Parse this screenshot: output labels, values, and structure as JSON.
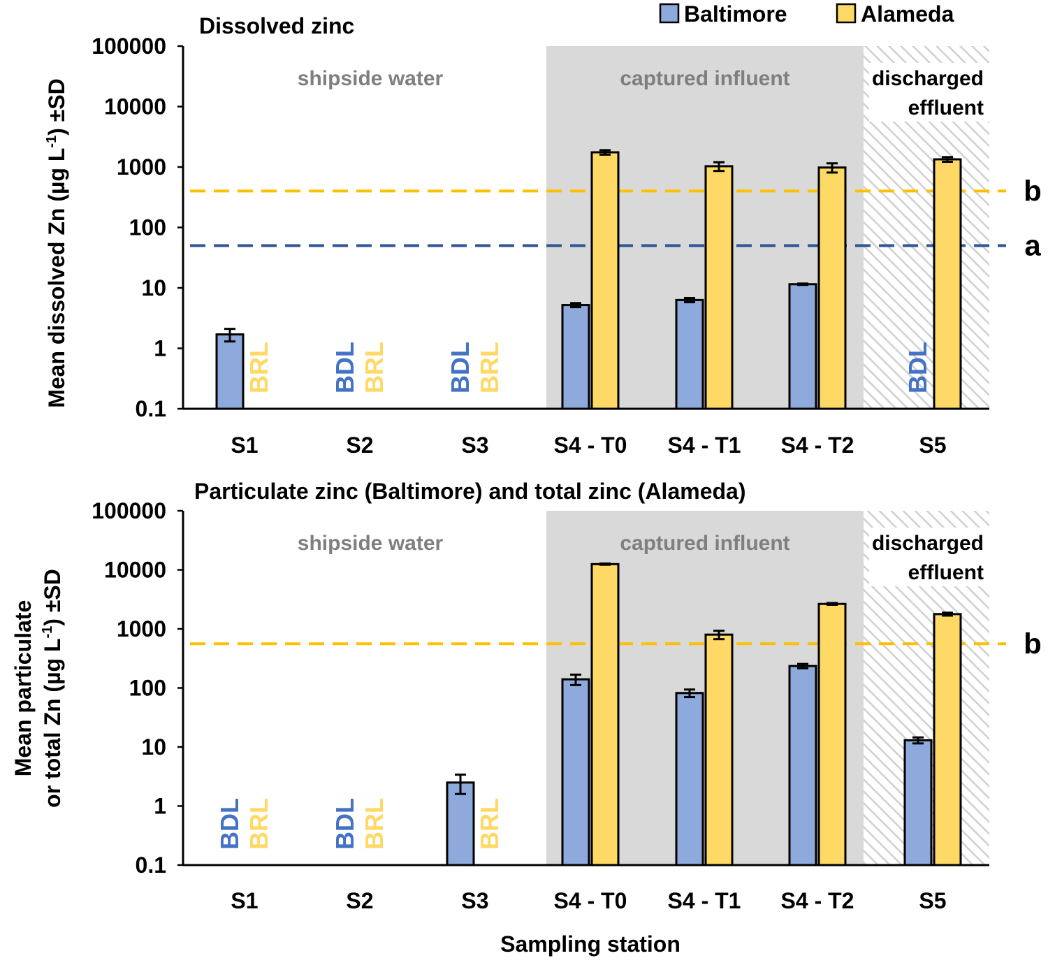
{
  "legend": {
    "series": [
      {
        "name": "Baltimore",
        "color": "#8EA9DB"
      },
      {
        "name": "Alameda",
        "color": "#FFD966"
      }
    ]
  },
  "colors": {
    "baltimore": "#8EA9DB",
    "alameda": "#FFD966",
    "baltimore_text": "#4472C4",
    "alameda_text": "#FFD966",
    "line_a": "#2F5597",
    "line_b": "#FFC000",
    "region_gray": "#D9D9D9",
    "region_label": "#7F7F7F"
  },
  "xlabel": "Sampling station",
  "chart_data": [
    {
      "type": "bar",
      "title": "Dissolved zinc",
      "ylabel": "Mean dissolved Zn (µg L⁻¹) ±SD",
      "yscale": "log",
      "ylim": [
        0.1,
        100000
      ],
      "yticks": [
        "0.1",
        "1",
        "10",
        "100",
        "1000",
        "10000",
        "100000"
      ],
      "categories": [
        "S1",
        "S2",
        "S3",
        "S4 - T0",
        "S4 - T1",
        "S4 - T2",
        "S5"
      ],
      "series": [
        {
          "name": "Baltimore",
          "values": [
            1.7,
            null,
            null,
            5.2,
            6.3,
            11.5,
            null
          ],
          "errors": [
            0.4,
            null,
            null,
            0.4,
            0.5,
            0.3,
            null
          ]
        },
        {
          "name": "Alameda",
          "values": [
            null,
            null,
            null,
            1750,
            1030,
            980,
            1340
          ],
          "errors": [
            null,
            null,
            null,
            150,
            170,
            170,
            120
          ]
        }
      ],
      "flags": [
        {
          "category": "S1",
          "series": "Alameda",
          "label": "BRL"
        },
        {
          "category": "S2",
          "series": "Baltimore",
          "label": "BDL"
        },
        {
          "category": "S2",
          "series": "Alameda",
          "label": "BRL"
        },
        {
          "category": "S3",
          "series": "Baltimore",
          "label": "BDL"
        },
        {
          "category": "S3",
          "series": "Alameda",
          "label": "BRL"
        },
        {
          "category": "S5",
          "series": "Baltimore",
          "label": "BDL"
        }
      ],
      "reference_lines": [
        {
          "label": "b",
          "value": 400,
          "color": "#FFC000"
        },
        {
          "label": "a",
          "value": 50,
          "color": "#2F5597"
        }
      ],
      "regions": [
        {
          "label": "shipside water",
          "from": 0,
          "to": 2,
          "style": "none"
        },
        {
          "label": "captured influent",
          "from": 3,
          "to": 5,
          "style": "gray"
        },
        {
          "label": "discharged effluent",
          "lines": [
            "discharged",
            "effluent"
          ],
          "from": 6,
          "to": 6,
          "style": "hatch"
        }
      ]
    },
    {
      "type": "bar",
      "title": "Particulate zinc (Baltimore) and total zinc (Alameda)",
      "ylabel": [
        "Mean particulate",
        "or total Zn (µg L⁻¹) ±SD"
      ],
      "yscale": "log",
      "ylim": [
        0.1,
        100000
      ],
      "yticks": [
        "0.1",
        "1",
        "10",
        "100",
        "1000",
        "10000",
        "100000"
      ],
      "categories": [
        "S1",
        "S2",
        "S3",
        "S4 - T0",
        "S4 - T1",
        "S4 - T2",
        "S5"
      ],
      "series": [
        {
          "name": "Baltimore",
          "values": [
            null,
            null,
            2.5,
            140,
            82,
            235,
            13
          ],
          "errors": [
            null,
            null,
            0.9,
            28,
            12,
            20,
            1.5
          ]
        },
        {
          "name": "Alameda",
          "values": [
            null,
            null,
            null,
            12500,
            800,
            2650,
            1780
          ],
          "errors": [
            null,
            null,
            null,
            300,
            130,
            90,
            100
          ]
        }
      ],
      "flags": [
        {
          "category": "S1",
          "series": "Baltimore",
          "label": "BDL"
        },
        {
          "category": "S1",
          "series": "Alameda",
          "label": "BRL"
        },
        {
          "category": "S2",
          "series": "Baltimore",
          "label": "BDL"
        },
        {
          "category": "S2",
          "series": "Alameda",
          "label": "BRL"
        },
        {
          "category": "S3",
          "series": "Alameda",
          "label": "BRL"
        }
      ],
      "reference_lines": [
        {
          "label": "b",
          "value": 560,
          "color": "#FFC000"
        }
      ],
      "regions": [
        {
          "label": "shipside water",
          "from": 0,
          "to": 2,
          "style": "none"
        },
        {
          "label": "captured influent",
          "from": 3,
          "to": 5,
          "style": "gray"
        },
        {
          "label": "discharged effluent",
          "lines": [
            "discharged",
            "effluent"
          ],
          "from": 6,
          "to": 6,
          "style": "hatch"
        }
      ]
    }
  ]
}
